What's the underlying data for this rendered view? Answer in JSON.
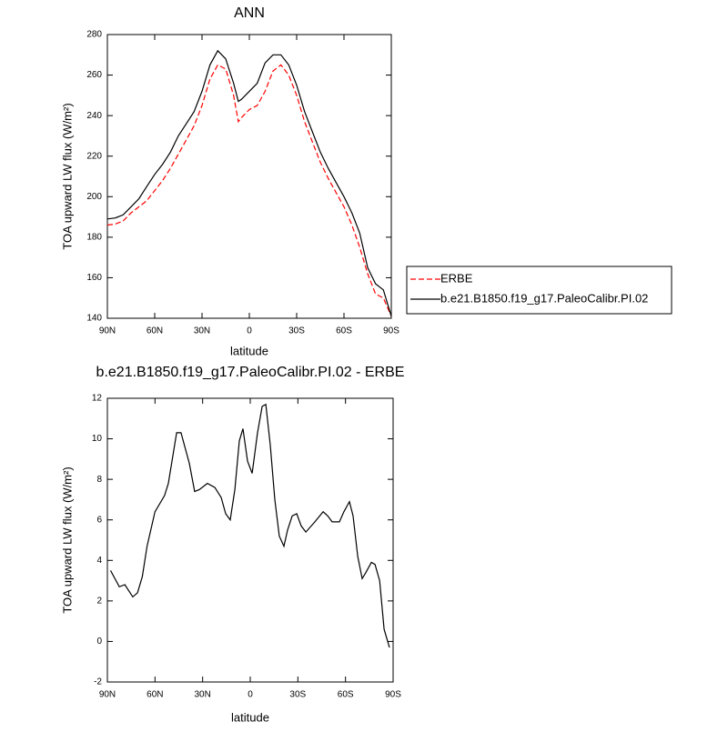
{
  "chart_data": [
    {
      "type": "line",
      "title": "ANN",
      "xlabel": "latitude",
      "ylabel": "TOA upward LW flux (W/m²)",
      "x": [
        90,
        85,
        80,
        75,
        70,
        65,
        60,
        55,
        50,
        45,
        40,
        35,
        30,
        25,
        20,
        15,
        10,
        7,
        5,
        0,
        -5,
        -10,
        -15,
        -20,
        -25,
        -30,
        -35,
        -40,
        -45,
        -50,
        -55,
        -60,
        -65,
        -70,
        -75,
        -80,
        -85,
        -90
      ],
      "series": [
        {
          "name": "ERBE",
          "color": "#ff0000",
          "line_style": "dashed",
          "values": [
            186,
            186.5,
            188,
            192,
            195,
            198,
            203,
            208,
            214,
            221,
            228,
            235,
            245,
            258,
            265,
            263,
            250,
            237,
            239,
            243,
            245,
            252,
            262,
            265,
            260,
            250,
            237,
            227,
            217,
            209,
            202,
            195,
            186,
            175,
            162,
            152,
            150,
            141
          ]
        },
        {
          "name": "b.e21.B1850.f19_g17.PaleoCalibr.PI.02",
          "color": "#000000",
          "line_style": "solid",
          "values": [
            189,
            189.5,
            191,
            195,
            199,
            205,
            211,
            216,
            222,
            230,
            236,
            242,
            252,
            265,
            272,
            268,
            256,
            247,
            248,
            252,
            256,
            266,
            270,
            270,
            265,
            255,
            242,
            232,
            222,
            214,
            207,
            200,
            192,
            182,
            165,
            157,
            154,
            141
          ]
        }
      ],
      "xlim": [
        90,
        -90
      ],
      "xticks": [
        {
          "value": 90,
          "label": "90N"
        },
        {
          "value": 60,
          "label": "60N"
        },
        {
          "value": 30,
          "label": "30N"
        },
        0,
        {
          "value": -30,
          "label": "30S"
        },
        {
          "value": -60,
          "label": "60S"
        },
        {
          "value": -90,
          "label": "90S"
        }
      ],
      "ylim": [
        140,
        280
      ],
      "yticks": [
        140,
        160,
        180,
        200,
        220,
        240,
        260,
        280
      ],
      "legend": "right"
    },
    {
      "type": "line",
      "title": "b.e21.B1850.f19_g17.PaleoCalibr.PI.02 - ERBE",
      "xlabel": "latitude",
      "ylabel": "TOA upward LW flux (W/m²)",
      "x": [
        88,
        82.5,
        79,
        74,
        71,
        68,
        65,
        60,
        54,
        51.6,
        46.4,
        43.6,
        38.4,
        35,
        32,
        27,
        22.3,
        18.3,
        15.5,
        12.6,
        9.7,
        6.9,
        4.6,
        1.7,
        -1.2,
        -4.6,
        -7.5,
        -9.8,
        -12.6,
        -15.5,
        -18.3,
        -21.2,
        -23.5,
        -26.4,
        -29.3,
        -32.1,
        -35,
        -40.7,
        -45.9,
        -48.8,
        -51.6,
        -56.2,
        -59,
        -62.5,
        -64.8,
        -67.7,
        -70.5,
        -72.8,
        -76.3,
        -78.6,
        -81.5,
        -84.3,
        -87.7
      ],
      "values": [
        3.5,
        2.7,
        2.8,
        2.2,
        2.4,
        3.2,
        4.7,
        6.4,
        7.2,
        7.8,
        10.3,
        10.3,
        8.8,
        7.4,
        7.5,
        7.8,
        7.6,
        7.1,
        6.3,
        6.0,
        7.5,
        9.9,
        10.5,
        8.9,
        8.3,
        10.3,
        11.6,
        11.7,
        9.7,
        7.0,
        5.2,
        4.7,
        5.5,
        6.2,
        6.3,
        5.7,
        5.4,
        5.9,
        6.4,
        6.2,
        5.9,
        5.9,
        6.4,
        6.9,
        6.2,
        4.2,
        3.1,
        3.4,
        3.9,
        3.8,
        3.0,
        0.6,
        -0.3
      ],
      "color": "#000000",
      "xlim": [
        90,
        -90
      ],
      "xticks": [
        {
          "value": 90,
          "label": "90N"
        },
        {
          "value": 60,
          "label": "60N"
        },
        {
          "value": 30,
          "label": "30N"
        },
        0,
        {
          "value": -30,
          "label": "30S"
        },
        {
          "value": -60,
          "label": "60S"
        },
        {
          "value": -90,
          "label": "90S"
        }
      ],
      "ylim": [
        -2,
        12
      ],
      "yticks": [
        -2,
        0,
        2,
        4,
        6,
        8,
        10,
        12
      ]
    }
  ]
}
